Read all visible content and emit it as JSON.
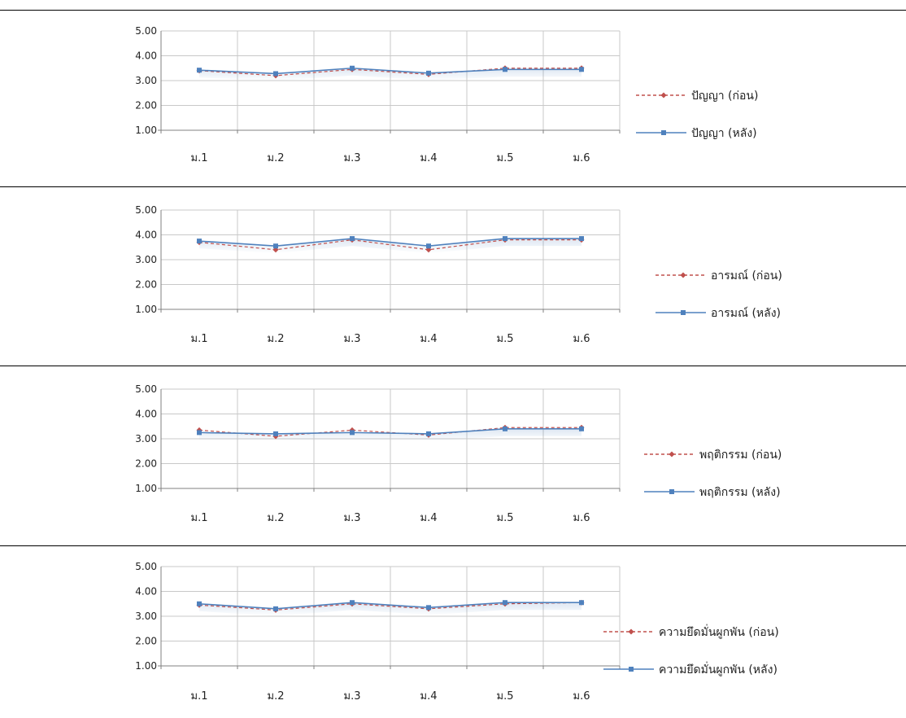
{
  "colors": {
    "before": "#c0504d",
    "after": "#4f81bd",
    "grid": "#c8c8c8",
    "axis": "#808080"
  },
  "chart_data": [
    {
      "type": "line",
      "categories": [
        "ม.1",
        "ม.2",
        "ม.3",
        "ม.4",
        "ม.5",
        "ม.6"
      ],
      "ylim": [
        1.0,
        5.0
      ],
      "yticks": [
        "5.00",
        "4.00",
        "3.00",
        "2.00",
        "1.00"
      ],
      "grid": true,
      "legend": "right",
      "series": [
        {
          "name": "ปัญญา (ก่อน)",
          "style": "dashed",
          "marker": "diamond",
          "color": "#c0504d",
          "values": [
            3.4,
            3.2,
            3.45,
            3.25,
            3.5,
            3.5
          ]
        },
        {
          "name": "ปัญญา (หลัง)",
          "style": "solid",
          "marker": "square",
          "color": "#4f81bd",
          "values": [
            3.42,
            3.28,
            3.5,
            3.3,
            3.45,
            3.45
          ]
        }
      ]
    },
    {
      "type": "line",
      "categories": [
        "ม.1",
        "ม.2",
        "ม.3",
        "ม.4",
        "ม.5",
        "ม.6"
      ],
      "ylim": [
        1.0,
        5.0
      ],
      "yticks": [
        "5.00",
        "4.00",
        "3.00",
        "2.00",
        "1.00"
      ],
      "grid": true,
      "legend": "right",
      "series": [
        {
          "name": "อารมณ์ (ก่อน)",
          "style": "dashed",
          "marker": "diamond",
          "color": "#c0504d",
          "values": [
            3.7,
            3.4,
            3.8,
            3.4,
            3.8,
            3.8
          ]
        },
        {
          "name": "อารมณ์ (หลัง)",
          "style": "solid",
          "marker": "square",
          "color": "#4f81bd",
          "values": [
            3.75,
            3.55,
            3.85,
            3.55,
            3.85,
            3.85
          ]
        }
      ]
    },
    {
      "type": "line",
      "categories": [
        "ม.1",
        "ม.2",
        "ม.3",
        "ม.4",
        "ม.5",
        "ม.6"
      ],
      "ylim": [
        1.0,
        5.0
      ],
      "yticks": [
        "5.00",
        "4.00",
        "3.00",
        "2.00",
        "1.00"
      ],
      "grid": true,
      "legend": "right",
      "series": [
        {
          "name": "พฤติกรรม (ก่อน)",
          "style": "dashed",
          "marker": "diamond",
          "color": "#c0504d",
          "values": [
            3.35,
            3.1,
            3.35,
            3.15,
            3.45,
            3.45
          ]
        },
        {
          "name": "พฤติกรรม (หลัง)",
          "style": "solid",
          "marker": "square",
          "color": "#4f81bd",
          "values": [
            3.25,
            3.2,
            3.25,
            3.2,
            3.4,
            3.4
          ]
        }
      ]
    },
    {
      "type": "line",
      "categories": [
        "ม.1",
        "ม.2",
        "ม.3",
        "ม.4",
        "ม.5",
        "ม.6"
      ],
      "ylim": [
        1.0,
        5.0
      ],
      "yticks": [
        "5.00",
        "4.00",
        "3.00",
        "2.00",
        "1.00"
      ],
      "grid": true,
      "legend": "right",
      "series": [
        {
          "name": "ความยึดมั่นผูกพัน (ก่อน)",
          "style": "dashed",
          "marker": "diamond",
          "color": "#c0504d",
          "values": [
            3.45,
            3.25,
            3.5,
            3.3,
            3.5,
            3.55
          ]
        },
        {
          "name": "ความยึดมั่นผูกพัน (หลัง)",
          "style": "solid",
          "marker": "square",
          "color": "#4f81bd",
          "values": [
            3.5,
            3.3,
            3.55,
            3.35,
            3.55,
            3.55
          ]
        }
      ]
    }
  ]
}
